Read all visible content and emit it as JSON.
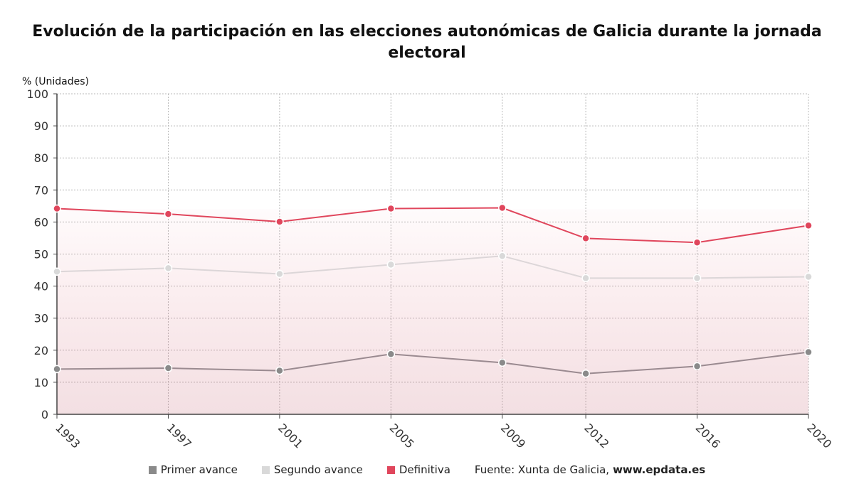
{
  "title": "Evolución de la participación en las elecciones autonómicas de Galicia durante la jornada electoral",
  "source": {
    "label": "Fuente: Xunta de Galicia,",
    "site": "www.epdata.es"
  },
  "chart_data": {
    "type": "line",
    "ylabel": "% (Unidades)",
    "ylim": [
      0,
      100
    ],
    "yticks": [
      0,
      10,
      20,
      30,
      40,
      50,
      60,
      70,
      80,
      90,
      100
    ],
    "categories": [
      "1993",
      "1997",
      "2001",
      "2005",
      "2009",
      "2012",
      "2016",
      "2020"
    ],
    "x": [
      1993,
      1997,
      2001,
      2005,
      2009,
      2012,
      2016,
      2020
    ],
    "grid": true,
    "legend_position": "bottom",
    "series": [
      {
        "name": "Primer avance",
        "color": "#8a8a8a",
        "line_color": "#9a8a90",
        "values": [
          14.1,
          14.4,
          13.6,
          18.8,
          16.1,
          12.7,
          15.0,
          19.4
        ]
      },
      {
        "name": "Segundo avance",
        "color": "#d9d9d9",
        "line_color": "#dcd6d8",
        "values": [
          44.5,
          45.6,
          43.8,
          46.7,
          49.4,
          42.5,
          42.5,
          42.9
        ]
      },
      {
        "name": "Definitiva",
        "color": "#e0465c",
        "line_color": "#e0465c",
        "values": [
          64.2,
          62.5,
          60.1,
          64.2,
          64.4,
          54.9,
          53.6,
          58.9
        ]
      }
    ]
  }
}
